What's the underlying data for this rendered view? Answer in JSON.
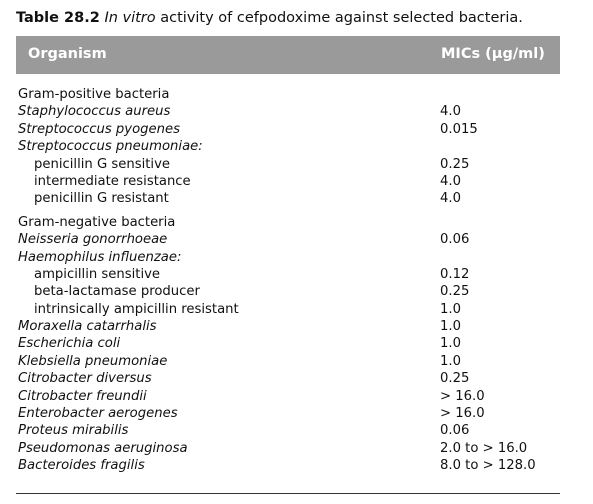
{
  "caption": {
    "number": "Table 28.2",
    "italic_part": "In vitro",
    "rest": " activity of cefpodoxime against selected bacteria."
  },
  "header": {
    "organism": "Organism",
    "mics": "MICs (µg/ml)"
  },
  "rows": [
    {
      "organism": "Gram-positive bacteria",
      "mic": "",
      "style": "normal"
    },
    {
      "organism": "Staphylococcus aureus",
      "mic": "4.0",
      "style": "italic"
    },
    {
      "organism": "Streptococcus pyogenes",
      "mic": "0.015",
      "style": "italic"
    },
    {
      "organism": "Streptococcus pneumoniae:",
      "mic": "",
      "style": "italic"
    },
    {
      "organism": "penicillin G sensitive",
      "mic": "0.25",
      "style": "indent"
    },
    {
      "organism": "intermediate resistance",
      "mic": "4.0",
      "style": "indent"
    },
    {
      "organism": "penicillin G resistant",
      "mic": "4.0",
      "style": "indent"
    },
    {
      "organism": "Gram-negative bacteria",
      "mic": "",
      "style": "normal",
      "gap": true
    },
    {
      "organism": "Neisseria gonorrhoeae",
      "mic": "0.06",
      "style": "italic"
    },
    {
      "organism": "Haemophilus influenzae:",
      "mic": "",
      "style": "italic"
    },
    {
      "organism": "ampicillin sensitive",
      "mic": "0.12",
      "style": "indent"
    },
    {
      "organism": "beta-lactamase producer",
      "mic": "0.25",
      "style": "indent"
    },
    {
      "organism": "intrinsically ampicillin resistant",
      "mic": "1.0",
      "style": "indent"
    },
    {
      "organism": "Moraxella catarrhalis",
      "mic": "1.0",
      "style": "italic"
    },
    {
      "organism": "Escherichia coli",
      "mic": "1.0",
      "style": "italic"
    },
    {
      "organism": "Klebsiella pneumoniae",
      "mic": "1.0",
      "style": "italic"
    },
    {
      "organism": "Citrobacter diversus",
      "mic": "0.25",
      "style": "italic"
    },
    {
      "organism": "Citrobacter freundii",
      "mic": "> 16.0",
      "style": "italic"
    },
    {
      "organism": "Enterobacter aerogenes",
      "mic": "> 16.0",
      "style": "italic"
    },
    {
      "organism": "Proteus mirabilis",
      "mic": "0.06",
      "style": "italic"
    },
    {
      "organism": "Pseudomonas aeruginosa",
      "mic": "2.0 to > 16.0",
      "style": "italic"
    },
    {
      "organism": "Bacteroides fragilis",
      "mic": "8.0 to > 128.0",
      "style": "italic"
    }
  ]
}
